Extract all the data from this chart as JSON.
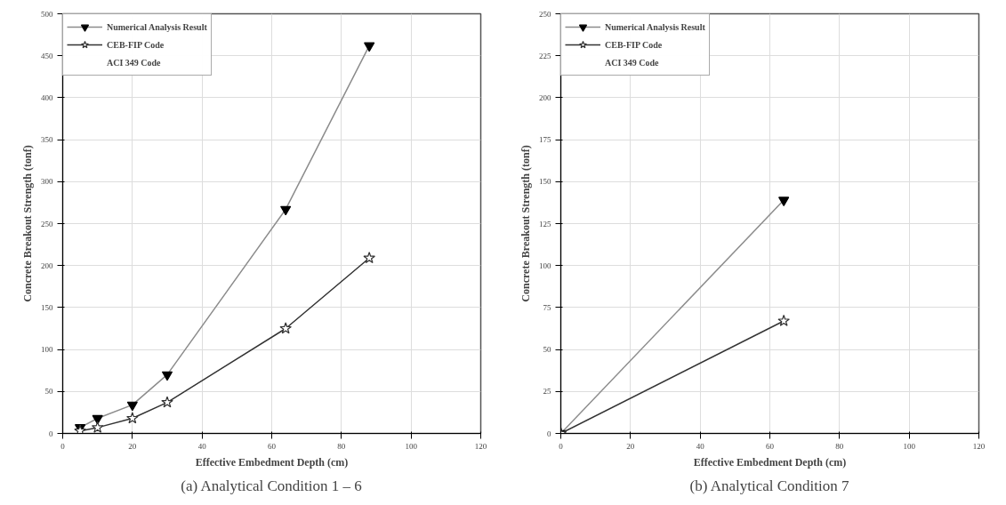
{
  "chart_data": [
    {
      "type": "line",
      "title": "(a) Analytical Condition 1 – 6",
      "xlabel": "Effective Embedment Depth (cm)",
      "ylabel": "Concrete Breakout Strength (tonf)",
      "x": [
        5,
        10,
        20,
        30,
        64,
        88
      ],
      "xlim": [
        0,
        120
      ],
      "xticks": [
        0,
        20,
        40,
        60,
        80,
        100,
        120
      ],
      "ylim": [
        0,
        500
      ],
      "yticks": [
        0,
        50,
        100,
        150,
        200,
        250,
        300,
        350,
        400,
        450,
        500
      ],
      "grid": true,
      "legend": "top left",
      "series": [
        {
          "name": "Numerical Analysis Result",
          "color": "#8c8c8c",
          "marker": "triangle",
          "values": [
            7,
            18,
            34,
            70,
            267,
            462
          ]
        },
        {
          "name": "ACI 349 Code",
          "color": "#333333",
          "marker": "circle",
          "values": [
            null,
            null,
            null,
            null,
            null,
            null
          ]
        },
        {
          "name": "CEB-FIP Code",
          "color": "#333333",
          "marker": "star",
          "values": [
            3,
            7,
            18,
            37,
            125,
            209
          ]
        }
      ]
    },
    {
      "type": "line",
      "title": "(b) Analytical Condition 7",
      "xlabel": "Effective Embedment Depth (cm)",
      "ylabel": "Concrete Breakout Strength (tonf)",
      "x": [
        0,
        64
      ],
      "xlim": [
        0,
        120
      ],
      "xticks": [
        0,
        20,
        40,
        60,
        80,
        100,
        120
      ],
      "ylim": [
        0,
        250
      ],
      "yticks": [
        0,
        25,
        50,
        75,
        100,
        125,
        150,
        175,
        200,
        225,
        250
      ],
      "grid": true,
      "legend": "top left",
      "series": [
        {
          "name": "Numerical Analysis Result",
          "color": "#8c8c8c",
          "marker": "triangle",
          "values": [
            0,
            139
          ]
        },
        {
          "name": "ACI 349 Code",
          "color": "#333333",
          "marker": "circle",
          "values": [
            null,
            null
          ]
        },
        {
          "name": "CEB-FIP Code",
          "color": "#333333",
          "marker": "star",
          "values": [
            0,
            67
          ]
        }
      ]
    }
  ]
}
